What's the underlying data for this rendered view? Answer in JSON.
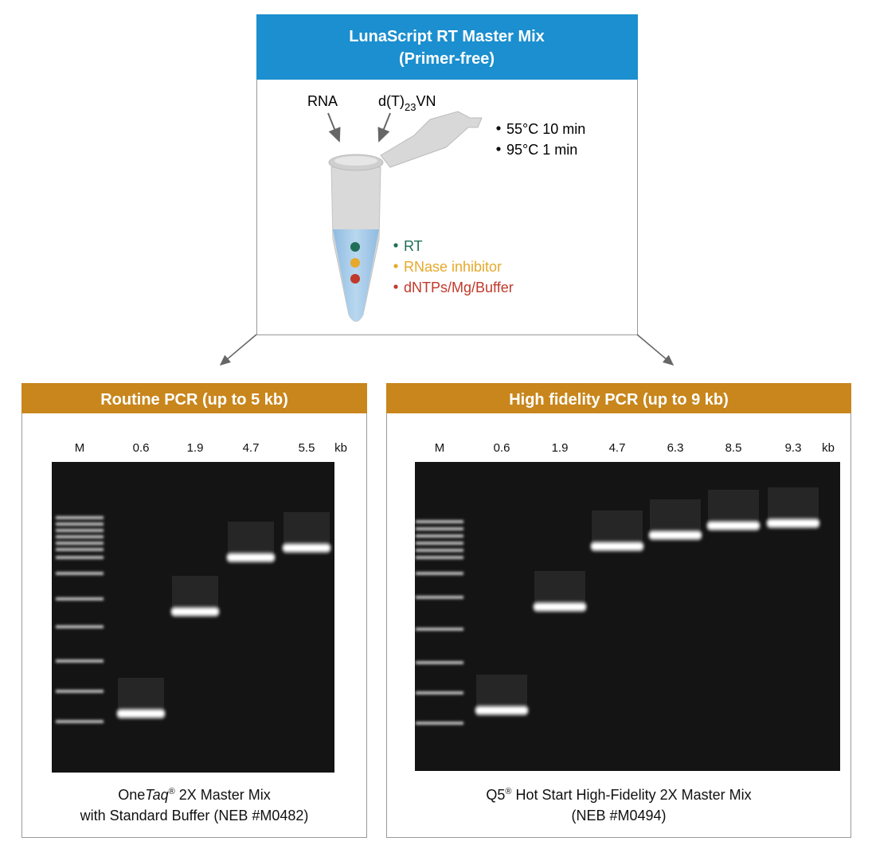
{
  "top": {
    "title": [
      "LunaScript RT Master Mix",
      "(Primer-free)"
    ],
    "inputs": {
      "rna": "RNA",
      "primer": [
        "d(T)",
        "23",
        "VN"
      ]
    },
    "steps": [
      "55°C 10 min",
      "95°C 1 min"
    ],
    "components": [
      "RT",
      "RNase inhibitor",
      "dNTPs/Mg/Buffer"
    ]
  },
  "panels": [
    {
      "title": "Routine PCR (up to 5 kb)",
      "lanes": [
        "M",
        "0.6",
        "1.9",
        "4.7",
        "5.5",
        "kb"
      ],
      "caption": [
        [
          "One",
          "Taq",
          "®",
          " 2X Master Mix"
        ],
        [
          "with Standard Buffer (NEB #M0482)"
        ]
      ]
    },
    {
      "title": "High fidelity PCR (up to 9 kb)",
      "lanes": [
        "M",
        "0.6",
        "1.9",
        "4.7",
        "6.3",
        "8.5",
        "9.3",
        "kb"
      ],
      "caption": [
        [
          "Q5",
          "®",
          " Hot Start High-Fidelity 2X Master Mix"
        ],
        [
          "(NEB #M0494)"
        ]
      ]
    }
  ]
}
